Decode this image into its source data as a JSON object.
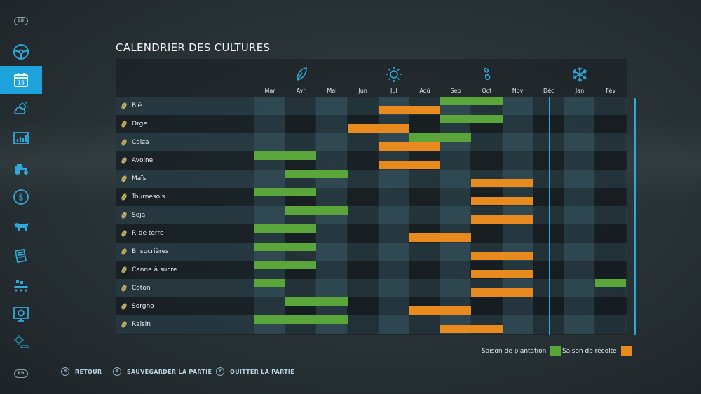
{
  "title": "CALENDRIER DES CULTURES",
  "sidebar": {
    "top_badge": "LB",
    "bottom_badge": "RB",
    "calendar_day": "15",
    "items": [
      {
        "icon": "steering-wheel-icon",
        "active": false
      },
      {
        "icon": "calendar-icon",
        "active": true
      },
      {
        "icon": "weather-icon",
        "active": false
      },
      {
        "icon": "statistics-icon",
        "active": false
      },
      {
        "icon": "tractor-icon",
        "active": false
      },
      {
        "icon": "finance-icon",
        "active": false
      },
      {
        "icon": "animals-icon",
        "active": false
      },
      {
        "icon": "contracts-icon",
        "active": false
      },
      {
        "icon": "production-icon",
        "active": false
      },
      {
        "icon": "help-icon",
        "active": false
      },
      {
        "icon": "settings-icon",
        "active": false
      }
    ]
  },
  "seasons": [
    {
      "icon": "spring-leaf-icon"
    },
    {
      "icon": "summer-sun-icon"
    },
    {
      "icon": "autumn-icon"
    },
    {
      "icon": "winter-snowflake-icon"
    }
  ],
  "months": [
    "Mar",
    "Avr",
    "Mai",
    "Jun",
    "Jul",
    "Aoû",
    "Sep",
    "Oct",
    "Nov",
    "Déc",
    "Jan",
    "Fév"
  ],
  "current_month_index": 9,
  "crops": [
    {
      "name": "Blé",
      "icon": "wheat-icon",
      "plant": [
        [
          6,
          7
        ]
      ],
      "harvest": [
        [
          4,
          5
        ]
      ]
    },
    {
      "name": "Orge",
      "icon": "barley-icon",
      "plant": [
        [
          6,
          7
        ]
      ],
      "harvest": [
        [
          3,
          4
        ]
      ]
    },
    {
      "name": "Colza",
      "icon": "canola-icon",
      "plant": [
        [
          5,
          6
        ]
      ],
      "harvest": [
        [
          4,
          5
        ]
      ]
    },
    {
      "name": "Avoine",
      "icon": "oat-icon",
      "plant": [
        [
          0,
          1
        ]
      ],
      "harvest": [
        [
          4,
          5
        ]
      ]
    },
    {
      "name": "Maïs",
      "icon": "corn-icon",
      "plant": [
        [
          1,
          2
        ]
      ],
      "harvest": [
        [
          7,
          8
        ]
      ]
    },
    {
      "name": "Tournesols",
      "icon": "sunflower-icon",
      "plant": [
        [
          0,
          1
        ]
      ],
      "harvest": [
        [
          7,
          8
        ]
      ]
    },
    {
      "name": "Soja",
      "icon": "soybean-icon",
      "plant": [
        [
          1,
          2
        ]
      ],
      "harvest": [
        [
          7,
          8
        ]
      ]
    },
    {
      "name": "P. de terre",
      "icon": "potato-icon",
      "plant": [
        [
          0,
          1
        ]
      ],
      "harvest": [
        [
          5,
          6
        ]
      ]
    },
    {
      "name": "B. sucrières",
      "icon": "sugarbeet-icon",
      "plant": [
        [
          0,
          1
        ]
      ],
      "harvest": [
        [
          7,
          8
        ]
      ]
    },
    {
      "name": "Canne à sucre",
      "icon": "sugarcane-icon",
      "plant": [
        [
          0,
          1
        ]
      ],
      "harvest": [
        [
          7,
          8
        ]
      ]
    },
    {
      "name": "Coton",
      "icon": "cotton-icon",
      "plant": [
        [
          0,
          0
        ],
        [
          11,
          11
        ]
      ],
      "harvest": [
        [
          7,
          8
        ]
      ]
    },
    {
      "name": "Sorgho",
      "icon": "sorghum-icon",
      "plant": [
        [
          1,
          2
        ]
      ],
      "harvest": [
        [
          5,
          6
        ]
      ]
    },
    {
      "name": "Raisin",
      "icon": "grape-icon",
      "plant": [
        [
          0,
          2
        ]
      ],
      "harvest": [
        [
          6,
          7
        ]
      ]
    }
  ],
  "legend": {
    "planting_label": "Saison de plantation",
    "harvest_label": "Saison de récolte",
    "planting_color": "#5aa63b",
    "harvest_color": "#e88a1d"
  },
  "footer": [
    {
      "glyph": "B",
      "label": "RETOUR"
    },
    {
      "glyph": "X",
      "label": "SAUVEGARDER LA PARTIE"
    },
    {
      "glyph": "Y",
      "label": "QUITTER LA PARTIE"
    }
  ]
}
